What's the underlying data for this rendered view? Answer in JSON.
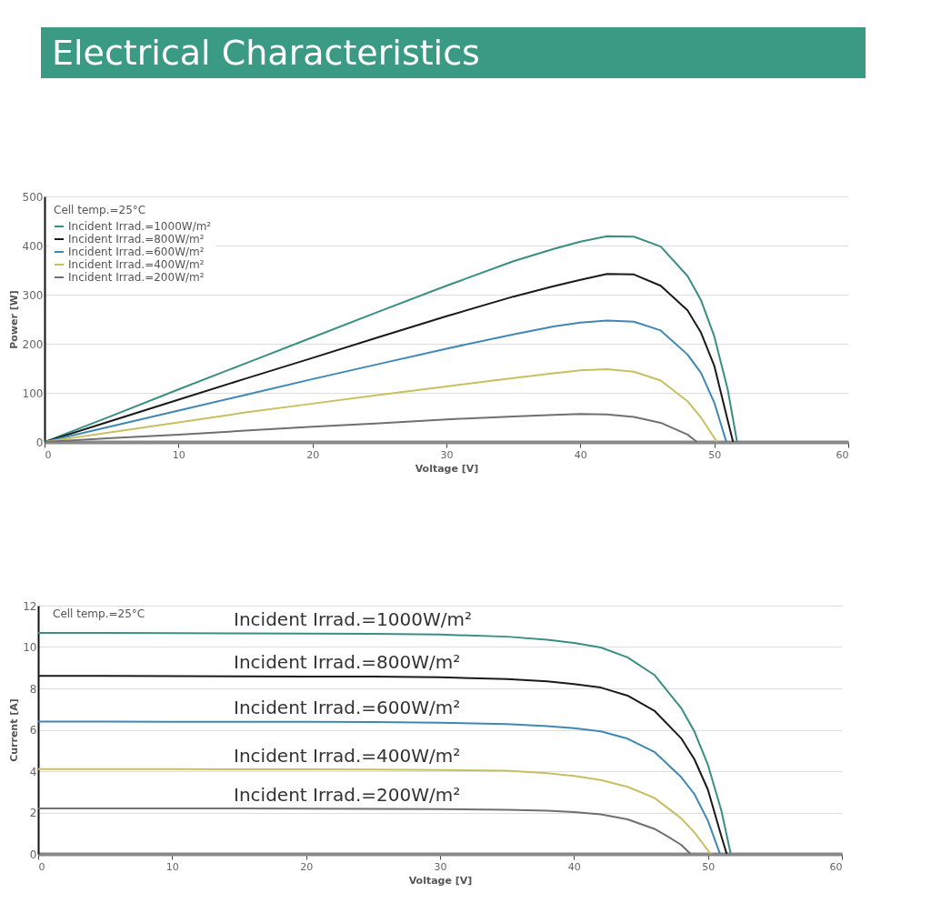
{
  "chart_data": [
    {
      "type": "line",
      "title": "Electrical Characteristics",
      "xlabel": "Voltage [V]",
      "ylabel": "Power [W]",
      "legend_title": "Cell temp.=25°C",
      "legend": "top left",
      "grid": "y",
      "xlim": [
        0,
        60
      ],
      "xticks": [
        0,
        10,
        20,
        30,
        40,
        50,
        60
      ],
      "ylim": [
        0,
        500
      ],
      "yticks": [
        0,
        100,
        200,
        300,
        400,
        500
      ],
      "series": [
        {
          "name": "Incident Irrad.=1000W/m²",
          "color": "#3a8f80",
          "x": [
            0,
            5,
            10,
            15,
            20,
            25,
            30,
            35,
            38,
            40,
            42,
            44,
            46,
            48,
            49,
            50,
            51,
            51.7
          ],
          "values": [
            0,
            53,
            107,
            160,
            213,
            266,
            318,
            368,
            393,
            408,
            419,
            418,
            398,
            338,
            289,
            215,
            107,
            0
          ]
        },
        {
          "name": "Incident Irrad.=800W/m²",
          "color": "#1a1a1a",
          "x": [
            0,
            5,
            10,
            15,
            20,
            25,
            30,
            35,
            38,
            40,
            42,
            44,
            46,
            48,
            49,
            50,
            51,
            51.4
          ],
          "values": [
            0,
            43,
            86,
            129,
            171,
            214,
            256,
            296,
            317,
            330,
            342,
            341,
            318,
            268,
            223,
            155,
            44,
            0
          ]
        },
        {
          "name": "Incident Irrad.=600W/m²",
          "color": "#3f88b5",
          "x": [
            0,
            5,
            10,
            15,
            20,
            25,
            30,
            35,
            38,
            40,
            42,
            44,
            46,
            48,
            49,
            50,
            50.9
          ],
          "values": [
            0,
            32,
            64,
            96,
            128,
            159,
            190,
            219,
            235,
            243,
            247,
            245,
            227,
            178,
            141,
            80,
            0
          ]
        },
        {
          "name": "Incident Irrad.=400W/m²",
          "color": "#c8c060",
          "x": [
            0,
            5,
            10,
            15,
            20,
            25,
            30,
            35,
            38,
            40,
            42,
            44,
            46,
            48,
            49,
            50.2
          ],
          "values": [
            0,
            20,
            40,
            60,
            78,
            96,
            113,
            130,
            140,
            146,
            148,
            143,
            125,
            83,
            50,
            0
          ]
        },
        {
          "name": "Incident Irrad.=200W/m²",
          "color": "#707070",
          "x": [
            0,
            5,
            10,
            15,
            20,
            25,
            30,
            35,
            38,
            40,
            42,
            44,
            46,
            47,
            48,
            48.7
          ],
          "values": [
            0,
            8,
            15,
            23,
            31,
            38,
            46,
            52,
            55,
            57,
            56,
            51,
            39,
            27,
            15,
            0
          ]
        }
      ]
    },
    {
      "type": "line",
      "xlabel": "Voltage [V]",
      "ylabel": "Current [A]",
      "annotations": [
        "Cell temp.=25°C"
      ],
      "legend": false,
      "grid": "y",
      "xlim": [
        0,
        60
      ],
      "xticks": [
        0,
        10,
        20,
        30,
        40,
        50,
        60
      ],
      "ylim": [
        0,
        12
      ],
      "yticks": [
        0,
        2,
        4,
        6,
        8,
        10,
        12
      ],
      "series": [
        {
          "name": "Incident Irrad.=1000W/m²",
          "color": "#3a8f80",
          "x": [
            0,
            5,
            10,
            15,
            20,
            25,
            30,
            35,
            38,
            40,
            42,
            44,
            46,
            48,
            49,
            50,
            51,
            51.7
          ],
          "values": [
            10.68,
            10.68,
            10.67,
            10.66,
            10.65,
            10.64,
            10.6,
            10.5,
            10.35,
            10.2,
            9.98,
            9.5,
            8.65,
            7.05,
            5.9,
            4.3,
            2.1,
            0
          ]
        },
        {
          "name": "Incident Irrad.=800W/m²",
          "color": "#1a1a1a",
          "x": [
            0,
            5,
            10,
            15,
            20,
            25,
            30,
            35,
            38,
            40,
            42,
            44,
            46,
            48,
            49,
            50,
            51,
            51.4
          ],
          "values": [
            8.6,
            8.6,
            8.59,
            8.58,
            8.57,
            8.57,
            8.54,
            8.45,
            8.34,
            8.21,
            8.04,
            7.65,
            6.92,
            5.59,
            4.56,
            3.1,
            0.86,
            0
          ]
        },
        {
          "name": "Incident Irrad.=600W/m²",
          "color": "#3f88b5",
          "x": [
            0,
            5,
            10,
            15,
            20,
            25,
            30,
            35,
            38,
            40,
            42,
            44,
            46,
            48,
            49,
            50,
            50.9
          ],
          "values": [
            6.4,
            6.4,
            6.39,
            6.39,
            6.38,
            6.37,
            6.34,
            6.27,
            6.18,
            6.08,
            5.92,
            5.57,
            4.93,
            3.71,
            2.88,
            1.6,
            0
          ]
        },
        {
          "name": "Incident Irrad.=400W/m²",
          "color": "#c8c060",
          "x": [
            0,
            5,
            10,
            15,
            20,
            25,
            30,
            35,
            38,
            40,
            42,
            44,
            46,
            48,
            49,
            50.2
          ],
          "values": [
            4.1,
            4.1,
            4.1,
            4.09,
            4.09,
            4.08,
            4.06,
            4.02,
            3.9,
            3.77,
            3.57,
            3.24,
            2.71,
            1.72,
            1.03,
            0
          ]
        },
        {
          "name": "Incident Irrad.=200W/m²",
          "color": "#707070",
          "x": [
            0,
            5,
            10,
            15,
            20,
            25,
            30,
            35,
            38,
            40,
            42,
            44,
            46,
            47,
            48,
            48.7
          ],
          "values": [
            2.2,
            2.2,
            2.2,
            2.2,
            2.19,
            2.18,
            2.17,
            2.13,
            2.09,
            2.02,
            1.91,
            1.67,
            1.21,
            0.84,
            0.44,
            0
          ]
        }
      ]
    }
  ]
}
